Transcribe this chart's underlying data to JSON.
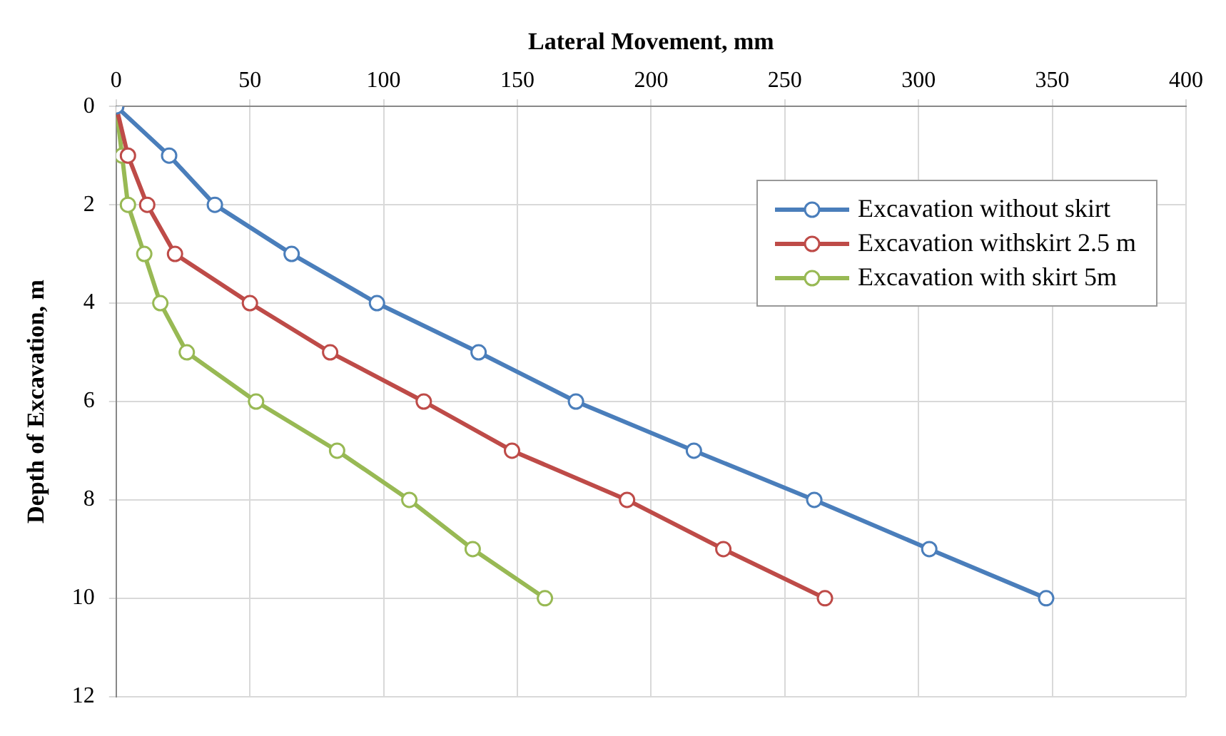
{
  "chart_data": {
    "type": "line",
    "xlabel": "Lateral Movement, mm",
    "ylabel": "Depth of Excavation, m",
    "xlim": [
      0,
      400
    ],
    "xticks": [
      0,
      50,
      100,
      150,
      200,
      250,
      300,
      350,
      400
    ],
    "ylim": [
      12,
      0
    ],
    "yticks": [
      0,
      2,
      4,
      6,
      8,
      10,
      12
    ],
    "grid": true,
    "legend": "top right",
    "marker": "circle",
    "line_style": "solid",
    "series": [
      {
        "name": "Excavation without skirt",
        "color": "#4a7ebb",
        "x": [
          0,
          19.8,
          36.9,
          65.6,
          97.5,
          135.5,
          171.9,
          216,
          261,
          304,
          347.7
        ],
        "values": [
          0,
          1,
          2,
          3,
          4,
          5,
          6,
          7,
          8,
          9,
          10
        ]
      },
      {
        "name": "Excavation withskirt 2.5 m",
        "color": "#be4b48",
        "x": [
          0,
          4.4,
          11.6,
          22,
          50,
          80,
          115,
          148,
          191,
          227,
          265
        ],
        "values": [
          0,
          1,
          2,
          3,
          4,
          5,
          6,
          7,
          8,
          9,
          10
        ]
      },
      {
        "name": "Excavation with skirt 5m",
        "color": "#98b954",
        "x": [
          0,
          2.2,
          4.4,
          10.5,
          16.5,
          26.4,
          52.3,
          82.6,
          109.6,
          133.3,
          160.3
        ],
        "values": [
          0,
          1,
          2,
          3,
          4,
          5,
          6,
          7,
          8,
          9,
          10
        ]
      }
    ]
  }
}
